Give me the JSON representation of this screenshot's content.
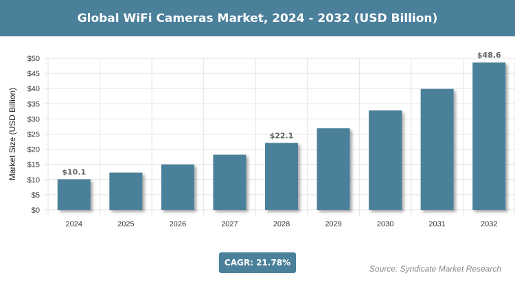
{
  "header": {
    "title": "Global WiFi Cameras Market, 2024 - 2032 (USD Billion)"
  },
  "chart_data": {
    "type": "bar",
    "title": "Global WiFi Cameras Market, 2024 - 2032 (USD Billion)",
    "categories": [
      "2024",
      "2025",
      "2026",
      "2027",
      "2028",
      "2029",
      "2030",
      "2031",
      "2032"
    ],
    "values": [
      10.1,
      12.3,
      15.0,
      18.2,
      22.1,
      26.9,
      32.8,
      39.9,
      48.6
    ],
    "data_labels": {
      "0": "$10.1",
      "4": "$22.1",
      "8": "$48.6"
    },
    "ylabel": "Market Size (USD Billion)",
    "xlabel": "",
    "ylim": [
      0,
      50
    ],
    "yticks": [
      "$0",
      "$5",
      "$10",
      "$15",
      "$20",
      "$25",
      "$30",
      "$35",
      "$40",
      "$45",
      "$50"
    ],
    "grid": true,
    "bar_color": "#4b809b"
  },
  "footer": {
    "cagr": "CAGR: 21.78%",
    "source": "Source: Syndicate Market Research"
  }
}
